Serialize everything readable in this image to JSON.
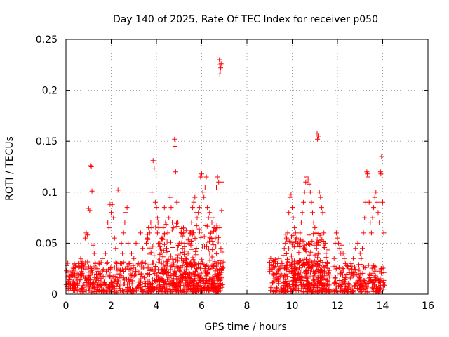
{
  "chart_data": {
    "type": "scatter",
    "title": "Day 140 of 2025, Rate Of TEC Index for receiver p050",
    "xlabel": "GPS time / hours",
    "ylabel": "ROTI / TECUs",
    "xlim": [
      0,
      16
    ],
    "ylim": [
      0,
      0.25
    ],
    "x_ticks": [
      0,
      2,
      4,
      6,
      8,
      10,
      12,
      14,
      16
    ],
    "x_tick_labels": [
      "0",
      "2",
      "4",
      "6",
      "8",
      "10",
      "12",
      "14",
      "16"
    ],
    "y_ticks": [
      0,
      0.05,
      0.1,
      0.15,
      0.2,
      0.25
    ],
    "y_tick_labels": [
      "0",
      "0.05",
      "0.1",
      "0.15",
      "0.2",
      "0.25"
    ],
    "grid": true,
    "marker": "+",
    "color": "#ff0000",
    "series": [
      {
        "name": "ROTI",
        "points": [
          [
            0.05,
            0.028
          ],
          [
            0.1,
            0.012
          ],
          [
            0.15,
            0.022
          ],
          [
            0.2,
            0.006
          ],
          [
            0.25,
            0.018
          ],
          [
            0.3,
            0.01
          ],
          [
            0.35,
            0.025
          ],
          [
            0.4,
            0.008
          ],
          [
            0.45,
            0.015
          ],
          [
            0.5,
            0.02
          ],
          [
            0.55,
            0.03
          ],
          [
            0.6,
            0.012
          ],
          [
            0.65,
            0.035
          ],
          [
            0.7,
            0.018
          ],
          [
            0.75,
            0.028
          ],
          [
            0.8,
            0.01
          ],
          [
            0.85,
            0.055
          ],
          [
            0.9,
            0.06
          ],
          [
            0.95,
            0.058
          ],
          [
            1.0,
            0.084
          ],
          [
            1.05,
            0.082
          ],
          [
            1.08,
            0.126
          ],
          [
            1.12,
            0.125
          ],
          [
            1.15,
            0.101
          ],
          [
            1.2,
            0.048
          ],
          [
            1.25,
            0.04
          ],
          [
            1.3,
            0.03
          ],
          [
            1.35,
            0.015
          ],
          [
            1.4,
            0.025
          ],
          [
            1.5,
            0.02
          ],
          [
            1.6,
            0.035
          ],
          [
            1.7,
            0.012
          ],
          [
            1.75,
            0.04
          ],
          [
            1.8,
            0.03
          ],
          [
            1.85,
            0.07
          ],
          [
            1.9,
            0.065
          ],
          [
            1.95,
            0.088
          ],
          [
            2.0,
            0.08
          ],
          [
            2.05,
            0.088
          ],
          [
            2.1,
            0.075
          ],
          [
            2.15,
            0.055
          ],
          [
            2.2,
            0.045
          ],
          [
            2.25,
            0.03
          ],
          [
            2.3,
            0.102
          ],
          [
            2.35,
            0.02
          ],
          [
            2.4,
            0.03
          ],
          [
            2.45,
            0.05
          ],
          [
            2.5,
            0.04
          ],
          [
            2.55,
            0.06
          ],
          [
            2.6,
            0.07
          ],
          [
            2.65,
            0.08
          ],
          [
            2.7,
            0.085
          ],
          [
            2.75,
            0.05
          ],
          [
            2.8,
            0.03
          ],
          [
            2.85,
            0.02
          ],
          [
            2.9,
            0.04
          ],
          [
            3.0,
            0.035
          ],
          [
            3.1,
            0.05
          ],
          [
            3.2,
            0.03
          ],
          [
            3.3,
            0.06
          ],
          [
            3.4,
            0.045
          ],
          [
            3.5,
            0.03
          ],
          [
            3.55,
            0.05
          ],
          [
            3.6,
            0.055
          ],
          [
            3.65,
            0.065
          ],
          [
            3.7,
            0.06
          ],
          [
            3.75,
            0.07
          ],
          [
            3.8,
            0.1
          ],
          [
            3.85,
            0.131
          ],
          [
            3.9,
            0.123
          ],
          [
            3.95,
            0.09
          ],
          [
            4.0,
            0.085
          ],
          [
            4.05,
            0.075
          ],
          [
            4.1,
            0.065
          ],
          [
            4.15,
            0.05
          ],
          [
            4.2,
            0.04
          ],
          [
            4.25,
            0.055
          ],
          [
            4.3,
            0.065
          ],
          [
            4.35,
            0.085
          ],
          [
            4.4,
            0.07
          ],
          [
            4.45,
            0.045
          ],
          [
            4.5,
            0.06
          ],
          [
            4.55,
            0.075
          ],
          [
            4.6,
            0.095
          ],
          [
            4.65,
            0.085
          ],
          [
            4.7,
            0.07
          ],
          [
            4.75,
            0.065
          ],
          [
            4.8,
            0.152
          ],
          [
            4.82,
            0.145
          ],
          [
            4.85,
            0.12
          ],
          [
            4.9,
            0.09
          ],
          [
            4.95,
            0.07
          ],
          [
            5.0,
            0.05
          ],
          [
            5.05,
            0.04
          ],
          [
            5.1,
            0.035
          ],
          [
            5.15,
            0.045
          ],
          [
            5.2,
            0.06
          ],
          [
            5.25,
            0.05
          ],
          [
            5.3,
            0.035
          ],
          [
            5.35,
            0.03
          ],
          [
            5.4,
            0.04
          ],
          [
            5.45,
            0.05
          ],
          [
            5.5,
            0.06
          ],
          [
            5.55,
            0.07
          ],
          [
            5.6,
            0.085
          ],
          [
            5.65,
            0.09
          ],
          [
            5.7,
            0.095
          ],
          [
            5.75,
            0.08
          ],
          [
            5.8,
            0.075
          ],
          [
            5.85,
            0.08
          ],
          [
            5.9,
            0.085
          ],
          [
            5.95,
            0.115
          ],
          [
            6.0,
            0.118
          ],
          [
            6.05,
            0.1
          ],
          [
            6.1,
            0.095
          ],
          [
            6.15,
            0.105
          ],
          [
            6.2,
            0.115
          ],
          [
            6.25,
            0.085
          ],
          [
            6.3,
            0.075
          ],
          [
            6.35,
            0.08
          ],
          [
            6.4,
            0.06
          ],
          [
            6.45,
            0.07
          ],
          [
            6.5,
            0.075
          ],
          [
            6.55,
            0.065
          ],
          [
            6.6,
            0.055
          ],
          [
            6.65,
            0.105
          ],
          [
            6.7,
            0.115
          ],
          [
            6.75,
            0.11
          ],
          [
            6.8,
            0.065
          ],
          [
            6.85,
            0.045
          ],
          [
            6.88,
            0.082
          ],
          [
            6.9,
            0.11
          ],
          [
            6.78,
            0.23
          ],
          [
            6.8,
            0.225
          ],
          [
            6.82,
            0.218
          ],
          [
            6.84,
            0.222
          ],
          [
            6.86,
            0.226
          ],
          [
            6.8,
            0.216
          ],
          [
            9.05,
            0.035
          ],
          [
            9.1,
            0.028
          ],
          [
            9.15,
            0.02
          ],
          [
            9.2,
            0.012
          ],
          [
            9.25,
            0.034
          ],
          [
            9.3,
            0.02
          ],
          [
            9.35,
            0.03
          ],
          [
            9.4,
            0.035
          ],
          [
            9.45,
            0.025
          ],
          [
            9.5,
            0.02
          ],
          [
            9.55,
            0.03
          ],
          [
            9.6,
            0.038
          ],
          [
            9.65,
            0.045
          ],
          [
            9.7,
            0.05
          ],
          [
            9.75,
            0.055
          ],
          [
            9.8,
            0.06
          ],
          [
            9.85,
            0.08
          ],
          [
            9.9,
            0.095
          ],
          [
            9.95,
            0.098
          ],
          [
            10.0,
            0.085
          ],
          [
            10.05,
            0.075
          ],
          [
            10.1,
            0.065
          ],
          [
            10.15,
            0.06
          ],
          [
            10.2,
            0.055
          ],
          [
            10.25,
            0.05
          ],
          [
            10.3,
            0.05
          ],
          [
            10.35,
            0.06
          ],
          [
            10.4,
            0.07
          ],
          [
            10.45,
            0.08
          ],
          [
            10.5,
            0.09
          ],
          [
            10.55,
            0.1
          ],
          [
            10.6,
            0.11
          ],
          [
            10.65,
            0.115
          ],
          [
            10.7,
            0.112
          ],
          [
            10.75,
            0.108
          ],
          [
            10.8,
            0.1
          ],
          [
            10.85,
            0.09
          ],
          [
            10.9,
            0.08
          ],
          [
            10.95,
            0.07
          ],
          [
            11.0,
            0.065
          ],
          [
            11.05,
            0.06
          ],
          [
            11.08,
            0.045
          ],
          [
            11.1,
            0.158
          ],
          [
            11.12,
            0.152
          ],
          [
            11.15,
            0.155
          ],
          [
            11.2,
            0.1
          ],
          [
            11.25,
            0.095
          ],
          [
            11.3,
            0.085
          ],
          [
            11.35,
            0.08
          ],
          [
            11.4,
            0.06
          ],
          [
            11.45,
            0.05
          ],
          [
            11.5,
            0.04
          ],
          [
            11.55,
            0.03
          ],
          [
            11.6,
            0.02
          ],
          [
            11.85,
            0.035
          ],
          [
            11.9,
            0.05
          ],
          [
            11.95,
            0.06
          ],
          [
            12.0,
            0.055
          ],
          [
            12.05,
            0.05
          ],
          [
            12.1,
            0.045
          ],
          [
            12.15,
            0.04
          ],
          [
            12.2,
            0.048
          ],
          [
            12.25,
            0.04
          ],
          [
            12.3,
            0.035
          ],
          [
            12.35,
            0.03
          ],
          [
            12.4,
            0.028
          ],
          [
            12.5,
            0.025
          ],
          [
            12.6,
            0.03
          ],
          [
            12.7,
            0.035
          ],
          [
            12.8,
            0.045
          ],
          [
            12.9,
            0.05
          ],
          [
            13.0,
            0.04
          ],
          [
            13.05,
            0.035
          ],
          [
            13.1,
            0.045
          ],
          [
            13.15,
            0.06
          ],
          [
            13.2,
            0.075
          ],
          [
            13.25,
            0.09
          ],
          [
            13.3,
            0.12
          ],
          [
            13.32,
            0.118
          ],
          [
            13.35,
            0.115
          ],
          [
            13.4,
            0.09
          ],
          [
            13.45,
            0.07
          ],
          [
            13.5,
            0.06
          ],
          [
            13.55,
            0.075
          ],
          [
            13.6,
            0.085
          ],
          [
            13.65,
            0.095
          ],
          [
            13.7,
            0.1
          ],
          [
            13.75,
            0.09
          ],
          [
            13.8,
            0.08
          ],
          [
            13.85,
            0.07
          ],
          [
            13.9,
            0.12
          ],
          [
            13.92,
            0.118
          ],
          [
            13.95,
            0.135
          ],
          [
            14.0,
            0.09
          ],
          [
            14.05,
            0.06
          ]
        ]
      }
    ],
    "dense_regions": [
      {
        "x_start": 0.0,
        "x_end": 6.95,
        "y_min": 0.002,
        "y_max": 0.032
      },
      {
        "x_start": 3.6,
        "x_end": 6.95,
        "y_min": 0.005,
        "y_max": 0.07
      },
      {
        "x_start": 9.0,
        "x_end": 11.7,
        "y_min": 0.002,
        "y_max": 0.035
      },
      {
        "x_start": 9.7,
        "x_end": 11.6,
        "y_min": 0.008,
        "y_max": 0.06
      },
      {
        "x_start": 11.8,
        "x_end": 14.1,
        "y_min": 0.002,
        "y_max": 0.03
      }
    ]
  }
}
